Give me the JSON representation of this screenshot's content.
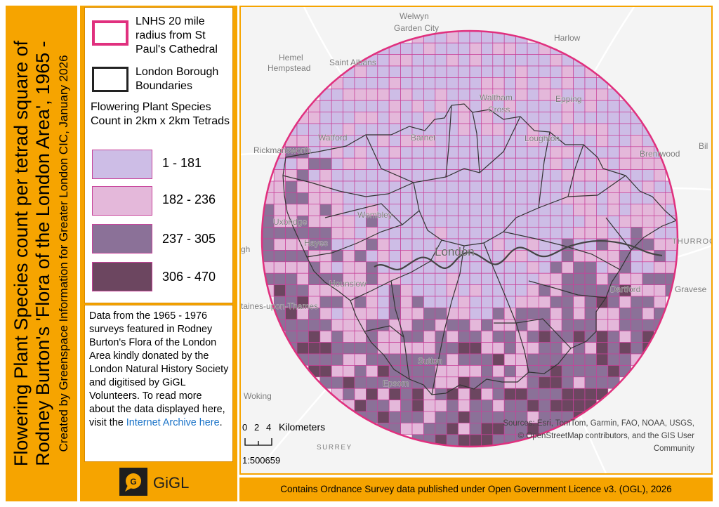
{
  "title": {
    "line1": "Flowering Plant Species count per tetrad square of",
    "line2": "Rodney Burton's 'Flora of the London Area', 1965 -",
    "line3": "Created by Greenspace Information for Greater London CIC, January 2026"
  },
  "legend": {
    "radius_label": "LNHS 20 mile radius from St Paul's Cathedral",
    "borough_label": "London Borough Boundaries",
    "count_title": "Flowering Plant Species Count in 2km x 2km Tetrads",
    "classes": [
      {
        "label": "1 - 181",
        "color": "#cdbde6",
        "min": 1,
        "max": 181
      },
      {
        "label": "182 - 236",
        "color": "#e4b8da",
        "min": 182,
        "max": 236
      },
      {
        "label": "237 - 305",
        "color": "#8b7198",
        "min": 237,
        "max": 305
      },
      {
        "label": "306 - 470",
        "color": "#6c4660",
        "min": 306,
        "max": 470
      }
    ],
    "radius_color": "#e0307e",
    "borough_color": "#222222"
  },
  "info": {
    "text": "Data from the 1965 - 1976 surveys featured in Rodney Burton's Flora of the London Area kindly donated by the London Natural History Society and digitised by GiGL Volunteers. To read more about the data displayed here, visit the ",
    "link": "Internet Archive here",
    "end": "."
  },
  "logo": {
    "text": "GiGL"
  },
  "map": {
    "place_labels": [
      {
        "name": "Welwyn",
        "style": "small"
      },
      {
        "name": "Garden City",
        "style": "small"
      },
      {
        "name": "Harlow",
        "style": "small"
      },
      {
        "name": "Hemel",
        "style": "small"
      },
      {
        "name": "Hempstead",
        "style": "small"
      },
      {
        "name": "Saint Albans",
        "style": "small"
      },
      {
        "name": "Waltham",
        "style": "small"
      },
      {
        "name": "Cross",
        "style": "small"
      },
      {
        "name": "Epping",
        "style": "small"
      },
      {
        "name": "Watford",
        "style": "small"
      },
      {
        "name": "Barnet",
        "style": "small"
      },
      {
        "name": "Loughton",
        "style": "small"
      },
      {
        "name": "Rickmansworth",
        "style": "small"
      },
      {
        "name": "Brentwood",
        "style": "small"
      },
      {
        "name": "Bil",
        "style": "small"
      },
      {
        "name": "Wembley",
        "style": "small"
      },
      {
        "name": "Uxbridge",
        "style": "small"
      },
      {
        "name": "Hayes",
        "style": "small"
      },
      {
        "name": "London",
        "style": "large"
      },
      {
        "name": "THURROC",
        "style": "caps"
      },
      {
        "name": "gh",
        "style": "small"
      },
      {
        "name": "Hounslow",
        "style": "small"
      },
      {
        "name": "Dartford",
        "style": "small"
      },
      {
        "name": "Gravese",
        "style": "small"
      },
      {
        "name": "taines-upon-Thames",
        "style": "small"
      },
      {
        "name": "Sutton",
        "style": "small"
      },
      {
        "name": "Epsom",
        "style": "small"
      },
      {
        "name": "Woking",
        "style": "small"
      },
      {
        "name": "SURREY",
        "style": "caps"
      }
    ],
    "scale": {
      "ticks": [
        "0",
        "2",
        "4"
      ],
      "unit": "Kilometers",
      "ratio": "1:500659"
    },
    "attribution": [
      "Sources: Esri, TomTom, Garmin, FAO, NOAA, USGS,",
      "© OpenStreetMap contributors, and the GIS User",
      "Community"
    ]
  },
  "footer": "Contains Ordnance Survey data published under Open Government Licence v3. (OGL), 2026"
}
